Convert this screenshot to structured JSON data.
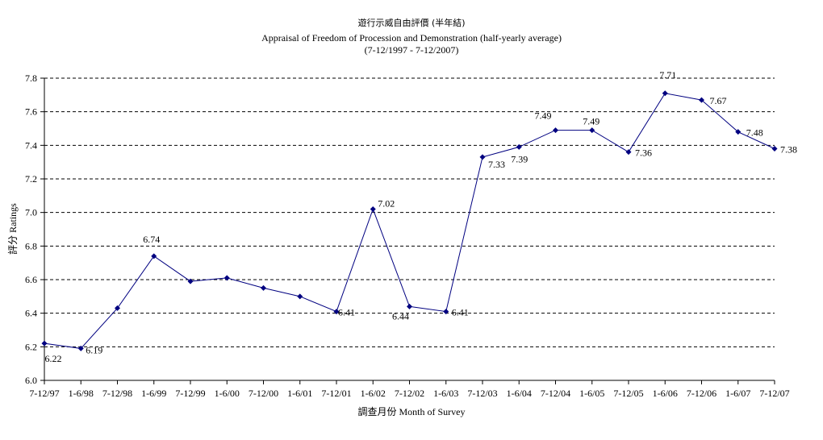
{
  "chart_data": {
    "type": "line",
    "title": "遊行示威自由評價 (半年結)",
    "subtitle": "Appraisal of Freedom of Procession and Demonstration (half-yearly average)",
    "period": "(7-12/1997 - 7-12/2007)",
    "xlabel": "調查月份 Month of Survey",
    "ylabel": "評分 Ratings",
    "ylim": [
      6.0,
      7.8
    ],
    "yticks": [
      "6.0",
      "6.2",
      "6.4",
      "6.6",
      "6.8",
      "7.0",
      "7.2",
      "7.4",
      "7.6",
      "7.8"
    ],
    "grid": true,
    "line_color": "#000080",
    "categories": [
      "7-12/97",
      "1-6/98",
      "7-12/98",
      "1-6/99",
      "7-12/99",
      "1-6/00",
      "7-12/00",
      "1-6/01",
      "7-12/01",
      "1-6/02",
      "7-12/02",
      "1-6/03",
      "7-12/03",
      "1-6/04",
      "7-12/04",
      "1-6/05",
      "7-12/05",
      "1-6/06",
      "7-12/06",
      "1-6/07",
      "7-12/07"
    ],
    "values": [
      6.22,
      6.19,
      6.43,
      6.74,
      6.59,
      6.61,
      6.55,
      6.5,
      6.41,
      7.02,
      6.44,
      6.41,
      7.33,
      7.39,
      7.49,
      7.49,
      7.36,
      7.71,
      7.67,
      7.48,
      7.38
    ],
    "data_labels": [
      {
        "index": 0,
        "text": "6.22"
      },
      {
        "index": 1,
        "text": "6.19"
      },
      {
        "index": 3,
        "text": "6.74"
      },
      {
        "index": 8,
        "text": "6.41"
      },
      {
        "index": 9,
        "text": "7.02"
      },
      {
        "index": 10,
        "text": "6.44"
      },
      {
        "index": 11,
        "text": "6.41"
      },
      {
        "index": 12,
        "text": "7.33"
      },
      {
        "index": 13,
        "text": "7.39"
      },
      {
        "index": 14,
        "text": "7.49"
      },
      {
        "index": 15,
        "text": "7.49"
      },
      {
        "index": 16,
        "text": "7.36"
      },
      {
        "index": 17,
        "text": "7.71"
      },
      {
        "index": 18,
        "text": "7.67"
      },
      {
        "index": 19,
        "text": "7.48"
      },
      {
        "index": 20,
        "text": "7.38"
      }
    ]
  }
}
